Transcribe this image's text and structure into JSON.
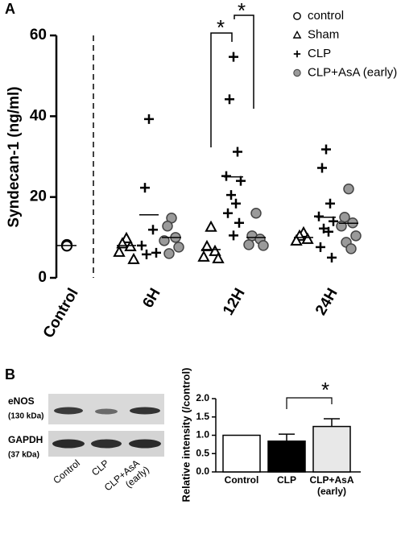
{
  "chart_data": [
    {
      "type": "dotplot",
      "panel": "A",
      "ylabel": "Syndecan-1 (ng/ml)",
      "categories": [
        "Control",
        "6H",
        "12H",
        "24H"
      ],
      "ylim": [
        0,
        60
      ],
      "yticks": [
        0,
        20,
        40,
        60
      ],
      "series": [
        {
          "name": "control",
          "marker": "circle-open",
          "color": "#000000",
          "values": [
            [
              8.2,
              8.0,
              7.9
            ],
            null,
            null,
            null
          ],
          "means": [
            8.0,
            null,
            null,
            null
          ]
        },
        {
          "name": "Sham",
          "marker": "triangle-open",
          "color": "#000000",
          "values": [
            null,
            [
              9.8,
              8.5,
              7.8,
              6.4,
              4.6
            ],
            [
              12.6,
              7.8,
              6.6,
              5.2,
              4.8
            ],
            [
              11.2,
              10.4,
              9.6,
              9.2
            ]
          ],
          "means": [
            null,
            8.0,
            7.0,
            10.0
          ]
        },
        {
          "name": "CLP",
          "marker": "plus",
          "color": "#000000",
          "values": [
            null,
            [
              39.3,
              22.3,
              11.9,
              8.0,
              6.2,
              5.8
            ],
            [
              54.7,
              44.2,
              31.2,
              25.2,
              24.0,
              20.5,
              18.4,
              16.0,
              13.6,
              10.5
            ],
            [
              31.8,
              27.2,
              18.4,
              15.2,
              14.0,
              12.2,
              11.4,
              7.6,
              5.0
            ]
          ],
          "means": [
            null,
            15.6,
            25.0,
            15.0
          ]
        },
        {
          "name": "CLP+AsA (early)",
          "marker": "circle-filled",
          "color": "#9a9a9a",
          "values": [
            null,
            [
              14.8,
              12.8,
              10.0,
              9.2,
              7.6,
              6.0
            ],
            [
              16.0,
              10.4,
              9.6,
              8.2,
              8.0
            ],
            [
              22.0,
              15.0,
              13.6,
              12.8,
              10.4,
              8.8,
              7.2
            ]
          ],
          "means": [
            null,
            10.0,
            10.0,
            13.5
          ]
        }
      ],
      "annotations": [
        "*",
        "*"
      ]
    },
    {
      "type": "bar",
      "panel": "B",
      "ylabel": "Relative intensity (/control)",
      "categories": [
        [
          "Control"
        ],
        [
          "CLP"
        ],
        [
          "CLP+AsA",
          "(early)"
        ]
      ],
      "values": [
        1.0,
        0.84,
        1.24
      ],
      "errors": [
        null,
        0.19,
        0.21
      ],
      "colors": [
        "#ffffff",
        "#000000",
        "#e8e8e8"
      ],
      "ylim": [
        0,
        2
      ],
      "yticks": [
        {
          "value": 0,
          "label": "0.0"
        },
        0.5,
        {
          "value": 1,
          "label": "1.0"
        },
        1.5,
        {
          "value": 2,
          "label": "2.0"
        }
      ],
      "annotations": [
        "*"
      ],
      "blot": {
        "proteins": [
          [
            "eNOS",
            "(130 kDa)"
          ],
          [
            "GAPDH",
            "(37 kDa)"
          ]
        ],
        "lanes": [
          [
            "Control"
          ],
          [
            "CLP"
          ],
          [
            "CLP+AsA",
            "(early)"
          ]
        ]
      }
    }
  ]
}
